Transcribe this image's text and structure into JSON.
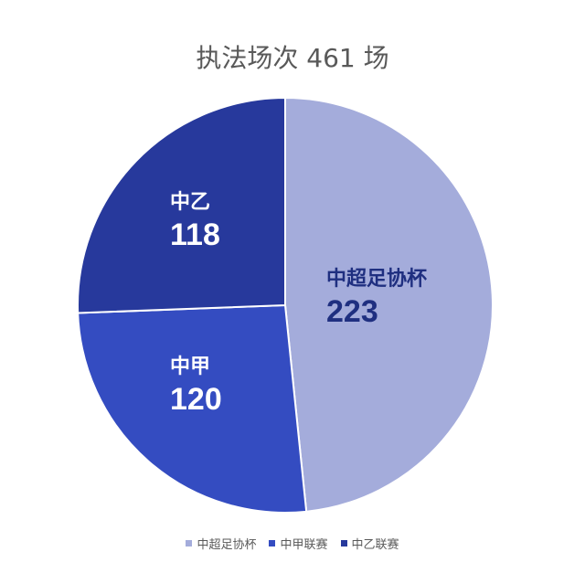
{
  "chart_data": {
    "type": "pie",
    "title": "执法场次 461 场",
    "slices": [
      {
        "label": "中超足协杯",
        "value": 223,
        "color": "#a4acdb",
        "label_color": "#1f2f80"
      },
      {
        "label": "中甲",
        "value": 120,
        "color": "#344cc1",
        "label_color": "#ffffff"
      },
      {
        "label": "中乙",
        "value": 118,
        "color": "#27399c",
        "label_color": "#ffffff"
      }
    ],
    "legend": {
      "placement": "bottom",
      "entries": [
        {
          "label": "中超足协杯",
          "color": "#a4acdb"
        },
        {
          "label": "中甲联赛",
          "color": "#344cc1"
        },
        {
          "label": "中乙联赛",
          "color": "#27399c"
        }
      ]
    }
  }
}
